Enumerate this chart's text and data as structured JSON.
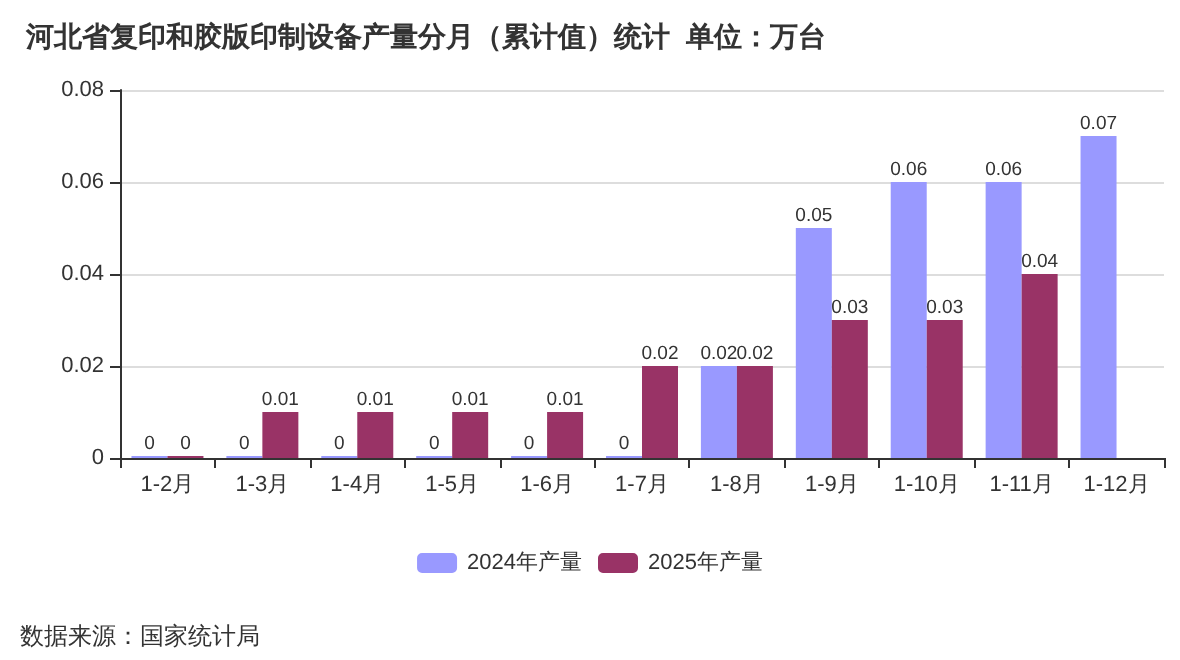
{
  "chart_data": {
    "type": "bar",
    "title": "河北省复印和胶版印制设备产量分月（累计值）统计  单位：万台",
    "categories": [
      "1-2月",
      "1-3月",
      "1-4月",
      "1-5月",
      "1-6月",
      "1-7月",
      "1-8月",
      "1-9月",
      "1-10月",
      "1-11月",
      "1-12月"
    ],
    "series": [
      {
        "name": "2024年产量",
        "color": "#9999ff",
        "values": [
          0,
          0,
          0,
          0,
          0,
          0,
          0.02,
          0.05,
          0.06,
          0.06,
          0.07
        ]
      },
      {
        "name": "2025年产量",
        "color": "#993366",
        "values": [
          0,
          0.01,
          0.01,
          0.01,
          0.01,
          0.02,
          0.02,
          0.03,
          0.03,
          0.04,
          null
        ]
      }
    ],
    "ylim": [
      0,
      0.08
    ],
    "yticks": [
      0,
      0.02,
      0.04,
      0.06,
      0.08
    ],
    "grid": "y",
    "legend": "bottom",
    "data_labels": true,
    "annotations": [
      "数据来源：国家统计局"
    ]
  }
}
